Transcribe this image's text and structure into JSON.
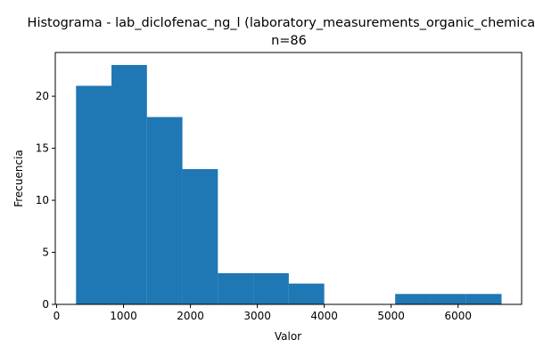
{
  "chart_data": {
    "type": "bar",
    "title": "Histograma - lab_diclofenac_ng_l (laboratory_measurements_organic_chemicals)",
    "subtitle": "n=86",
    "xlabel": "Valor",
    "ylabel": "Frecuencia",
    "xlim": [
      -20,
      6950
    ],
    "ylim": [
      0,
      24.2
    ],
    "bins": [
      {
        "start": 290,
        "end": 820,
        "count": 21
      },
      {
        "start": 820,
        "end": 1350,
        "count": 23
      },
      {
        "start": 1350,
        "end": 1880,
        "count": 18
      },
      {
        "start": 1880,
        "end": 2410,
        "count": 13
      },
      {
        "start": 2410,
        "end": 2940,
        "count": 3
      },
      {
        "start": 2940,
        "end": 3470,
        "count": 3
      },
      {
        "start": 3470,
        "end": 4000,
        "count": 2
      },
      {
        "start": 4000,
        "end": 4530,
        "count": 0
      },
      {
        "start": 4530,
        "end": 5060,
        "count": 0
      },
      {
        "start": 5060,
        "end": 5590,
        "count": 1
      },
      {
        "start": 5590,
        "end": 6120,
        "count": 1
      },
      {
        "start": 6120,
        "end": 6650,
        "count": 1
      }
    ],
    "xticks": [
      0,
      1000,
      2000,
      3000,
      4000,
      5000,
      6000
    ],
    "yticks": [
      0,
      5,
      10,
      15,
      20
    ],
    "bar_color": "#1f77b4",
    "grid": false,
    "legend": false
  }
}
